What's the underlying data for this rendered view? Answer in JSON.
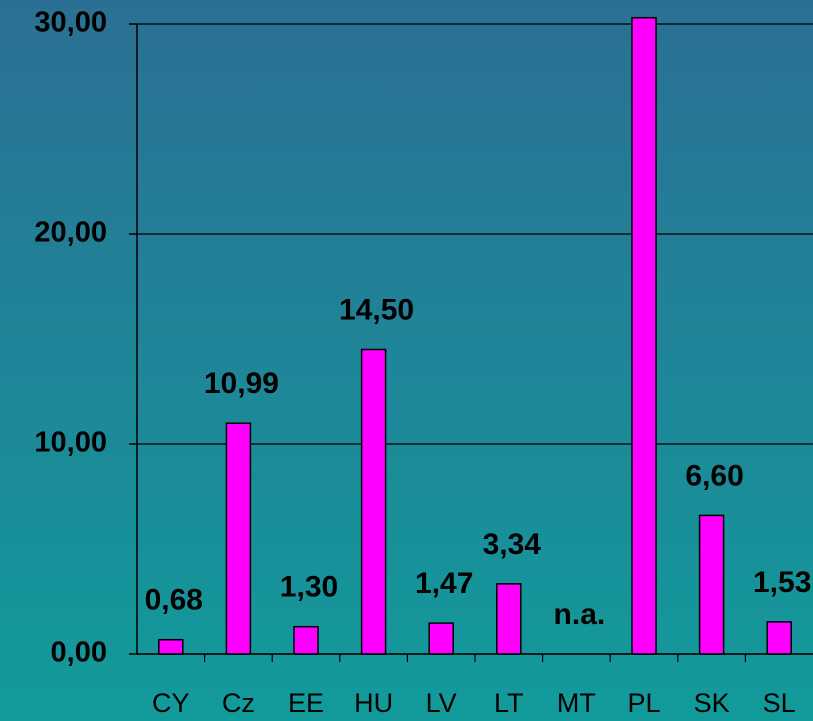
{
  "chart_data": {
    "type": "bar",
    "categories": [
      "CY",
      "Cz",
      "EE",
      "HU",
      "LV",
      "LT",
      "MT",
      "PL",
      "SK",
      "SL"
    ],
    "values": [
      0.68,
      10.99,
      1.3,
      14.5,
      1.47,
      3.34,
      null,
      30.3,
      6.6,
      1.53
    ],
    "value_labels": [
      "0,68",
      "10,99",
      "1,30",
      "14,50",
      "1,47",
      "3,34",
      "n.a.",
      null,
      "6,60",
      "1,53"
    ],
    "color": "#ff00ff",
    "ylim": [
      0,
      30
    ],
    "yticks": [
      {
        "value": 0,
        "label": "0,00"
      },
      {
        "value": 10,
        "label": "10,00"
      },
      {
        "value": 20,
        "label": "20,00"
      },
      {
        "value": 30,
        "label": "30,00"
      }
    ],
    "grid": true
  }
}
